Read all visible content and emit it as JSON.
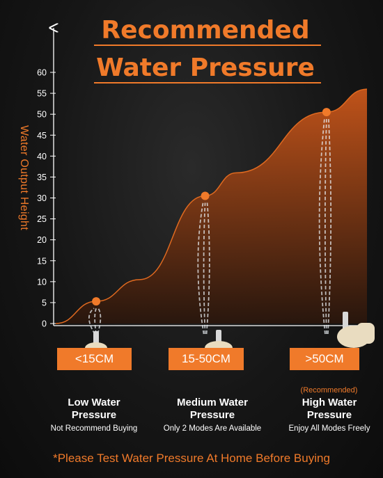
{
  "title_line1": "Recommended",
  "title_line2": "Water Pressure",
  "chart_data": {
    "type": "area",
    "title": "Recommended Water Pressure",
    "ylabel": "Water Output Height",
    "xlabel": "",
    "ylim": [
      0,
      60
    ],
    "yticks": [
      0,
      5,
      10,
      15,
      20,
      25,
      30,
      35,
      40,
      45,
      50,
      55,
      60
    ],
    "grid": false,
    "categories": [
      "<15CM",
      "15-50CM",
      ">50CM"
    ],
    "points": [
      {
        "category": "<15CM",
        "value": 5.3
      },
      {
        "category": "15-50CM",
        "value": 30.5
      },
      {
        "category": ">50CM",
        "value": 50.5
      }
    ],
    "curve": [
      {
        "x": 0.0,
        "y": 0
      },
      {
        "x": 0.13,
        "y": 5.3
      },
      {
        "x": 0.27,
        "y": 10.5
      },
      {
        "x": 0.48,
        "y": 30.5
      },
      {
        "x": 0.58,
        "y": 36
      },
      {
        "x": 0.87,
        "y": 50.5
      },
      {
        "x": 1.0,
        "y": 56
      }
    ],
    "colors": {
      "accent": "#f07a2a",
      "fill_top": "#c9561a",
      "background": "#111111"
    }
  },
  "categories": [
    {
      "label": "<15CM",
      "title_line1": "Low Water",
      "title_line2": "Pressure",
      "sub": "Not Recommend Buying"
    },
    {
      "label": "15-50CM",
      "title_line1": "Medium Water",
      "title_line2": "Pressure",
      "sub": "Only 2 Modes Are Available"
    },
    {
      "label": ">50CM",
      "note": "(Recommended)",
      "title_line1": "High Water",
      "title_line2": "Pressure",
      "sub": "Enjoy All Modes Freely"
    }
  ],
  "footnote": "*Please Test Water Pressure At Home Before Buying"
}
